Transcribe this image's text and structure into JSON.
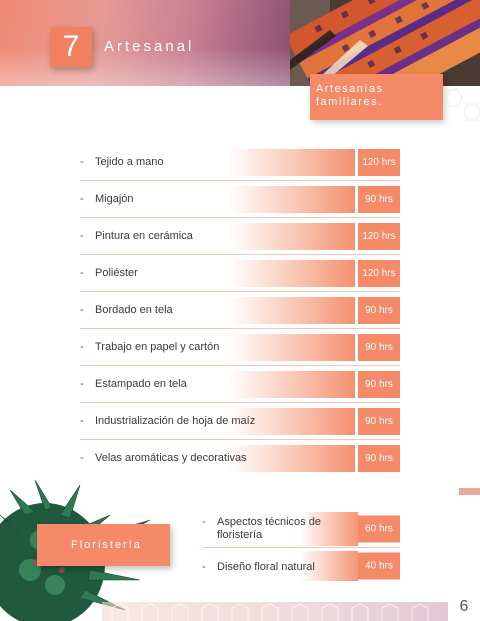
{
  "header": {
    "number": "7",
    "title": "Artesanal",
    "subtitle_line1": "Artesanías",
    "subtitle_line2": "familiares."
  },
  "courses": [
    {
      "label": "Tejido a mano",
      "hours": "120 hrs"
    },
    {
      "label": "Migajón",
      "hours": "90 hrs"
    },
    {
      "label": "Pintura en cerámica",
      "hours": "120 hrs"
    },
    {
      "label": "Poliéster",
      "hours": "120 hrs"
    },
    {
      "label": "Bordado en tela",
      "hours": "90 hrs"
    },
    {
      "label": "Trabajo en papel y cartón",
      "hours": "90 hrs"
    },
    {
      "label": "Estampado en tela",
      "hours": "90 hrs"
    },
    {
      "label": "Industrialización de hoja de maíz",
      "hours": "90 hrs"
    },
    {
      "label": "Velas aromáticas y decorativas",
      "hours": "90 hrs"
    }
  ],
  "floristeria": {
    "title": "Floristería",
    "courses": [
      {
        "label_line1": "Aspectos técnicos de",
        "label_line2": "floristería",
        "hours": "60 hrs"
      },
      {
        "label_line1": "Diseño floral natural",
        "label_line2": "",
        "hours": "40 hrs"
      }
    ]
  },
  "dash": "-",
  "page_number": "6",
  "colors": {
    "accent": "#f48a68",
    "header_pink": "#c77f94",
    "plant_green": "#1f5a3e"
  }
}
